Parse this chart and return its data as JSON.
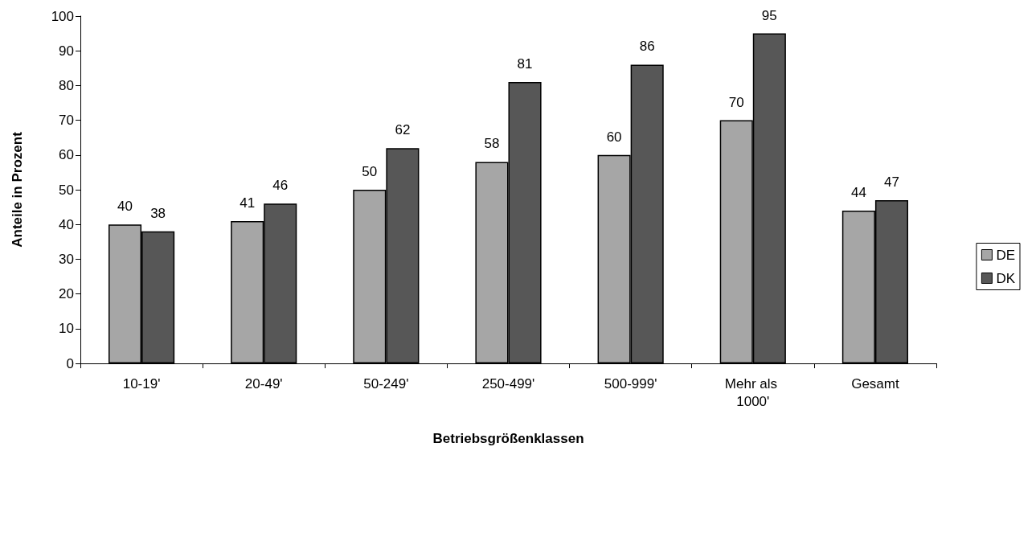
{
  "chart_data": {
    "type": "bar",
    "xlabel": "Betriebsgrößenklassen",
    "ylabel": "Anteile in Prozent",
    "categories": [
      "10-19'",
      "20-49'",
      "50-249'",
      "250-499'",
      "500-999'",
      "Mehr als 1000'",
      "Gesamt"
    ],
    "series": [
      {
        "name": "DE",
        "color": "#a6a6a6",
        "values": [
          40,
          41,
          50,
          58,
          60,
          70,
          44
        ]
      },
      {
        "name": "DK",
        "color": "#575757",
        "values": [
          38,
          46,
          62,
          81,
          86,
          95,
          47
        ]
      }
    ],
    "ylim": [
      0,
      100
    ],
    "yticks": [
      0,
      10,
      20,
      30,
      40,
      50,
      60,
      70,
      80,
      90,
      100
    ],
    "grid": false,
    "legend": "right",
    "data_labels": true
  }
}
